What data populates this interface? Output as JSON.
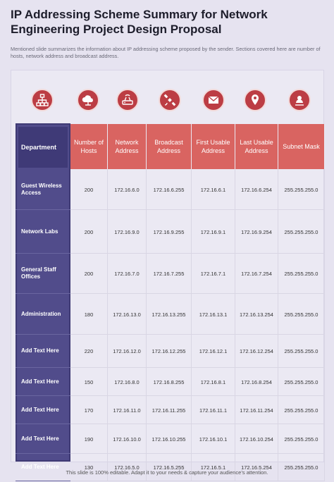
{
  "title": "IP Addressing Scheme Summary for Network Engineering Project Design Proposal",
  "subtitle": "Mentioned slide summarizes the information about IP addressing scheme proposed by the sender. Sections covered here are number of hosts, network address and broadcast address.",
  "icons": [
    "network-hierarchy-icon",
    "cloud-network-icon",
    "router-icon",
    "satellite-icon",
    "email-icon",
    "location-pin-icon",
    "user-location-icon"
  ],
  "colors": {
    "header_red": "#d96461",
    "dept_purple": "#514c8b",
    "icon_red": "#bc3d44"
  },
  "table": {
    "headers": [
      "Department",
      "Number of Hosts",
      "Network Address",
      "Broadcast Address",
      "First Usable Address",
      "Last Usable Address",
      "Subnet Mask"
    ],
    "rows": [
      [
        "Guest Wireless Access",
        "200",
        "172.16.6.0",
        "172.16.6.255",
        "172.16.6.1",
        "172.16.6.254",
        "255.255.255.0"
      ],
      [
        "Network Labs",
        "200",
        "172.16.9.0",
        "172.16.9.255",
        "172.16.9.1",
        "172.16.9.254",
        "255.255.255.0"
      ],
      [
        "General Staff Offices",
        "200",
        "172.16.7.0",
        "172.16.7.255",
        "172.16.7.1",
        "172.16.7.254",
        "255.255.255.0"
      ],
      [
        "Administration",
        "180",
        "172.16.13.0",
        "172.16.13.255",
        "172.16.13.1",
        "172.16.13.254",
        "255.255.255.0"
      ],
      [
        "Add Text Here",
        "220",
        "172.16.12.0",
        "172.16.12.255",
        "172.16.12.1",
        "172.16.12.254",
        "255.255.255.0"
      ],
      [
        "Add Text Here",
        "150",
        "172.16.8.0",
        "172.16.8.255",
        "172.16.8.1",
        "172.16.8.254",
        "255.255.255.0"
      ],
      [
        "Add Text Here",
        "170",
        "172.16.11.0",
        "172.16.11.255",
        "172.16.11.1",
        "172.16.11.254",
        "255.255.255.0"
      ],
      [
        "Add Text Here",
        "190",
        "172.16.10.0",
        "172.16.10.255",
        "172.16.10.1",
        "172.16.10.254",
        "255.255.255.0"
      ],
      [
        "Add Text Here",
        "130",
        "172.16.5.0",
        "172.16.5.255",
        "172.16.5.1",
        "172.16.5.254",
        "255.255.255.0"
      ]
    ]
  },
  "footer": "This slide is 100% editable. Adapt it to your needs & capture your audience’s attention."
}
